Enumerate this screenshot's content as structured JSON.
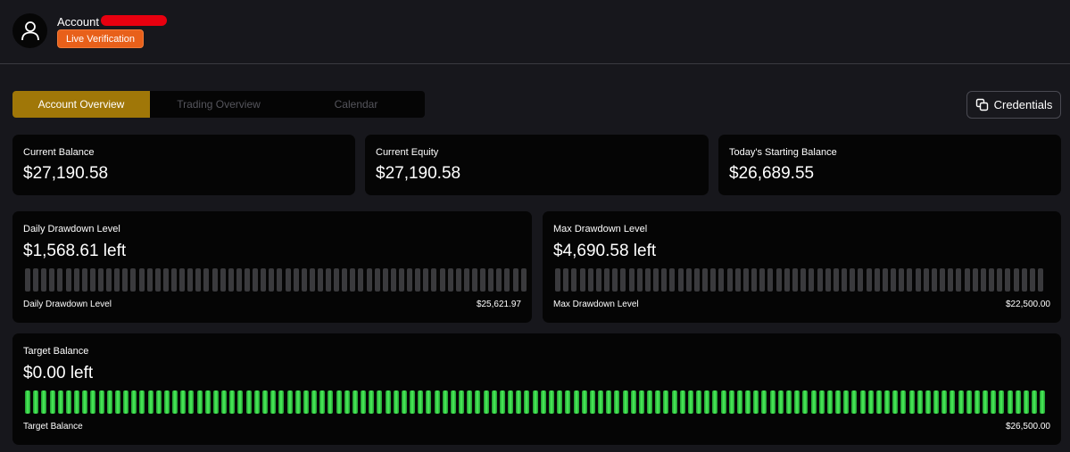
{
  "header": {
    "account_label": "Account",
    "badge_label": "Live Verification",
    "avatar_icon": "user-icon"
  },
  "tabs": [
    {
      "label": "Account Overview",
      "active": true
    },
    {
      "label": "Trading Overview",
      "active": false
    },
    {
      "label": "Calendar",
      "active": false
    }
  ],
  "credentials_button": {
    "label": "Credentials",
    "icon": "copy-icon"
  },
  "stats": {
    "current_balance": {
      "title": "Current Balance",
      "value": "$27,190.58"
    },
    "current_equity": {
      "title": "Current Equity",
      "value": "$27,190.58"
    },
    "starting_balance": {
      "title": "Today's Starting Balance",
      "value": "$26,689.55"
    }
  },
  "daily_drawdown": {
    "title": "Daily Drawdown Level",
    "value": "$1,568.61 left",
    "footer_label": "Daily Drawdown Level",
    "footer_value": "$25,621.97",
    "fill": 0
  },
  "max_drawdown": {
    "title": "Max Drawdown Level",
    "value": "$4,690.58 left",
    "footer_label": "Max Drawdown Level",
    "footer_value": "$22,500.00",
    "fill": 0
  },
  "target_balance": {
    "title": "Target Balance",
    "value": "$0.00 left",
    "footer_label": "Target Balance",
    "footer_value": "$26,500.00",
    "fill": 1
  },
  "colors": {
    "accent_tab": "#a07708",
    "badge": "#e8601a",
    "progress_fill": "#4cf05c",
    "progress_empty": "#3a3a3d"
  }
}
